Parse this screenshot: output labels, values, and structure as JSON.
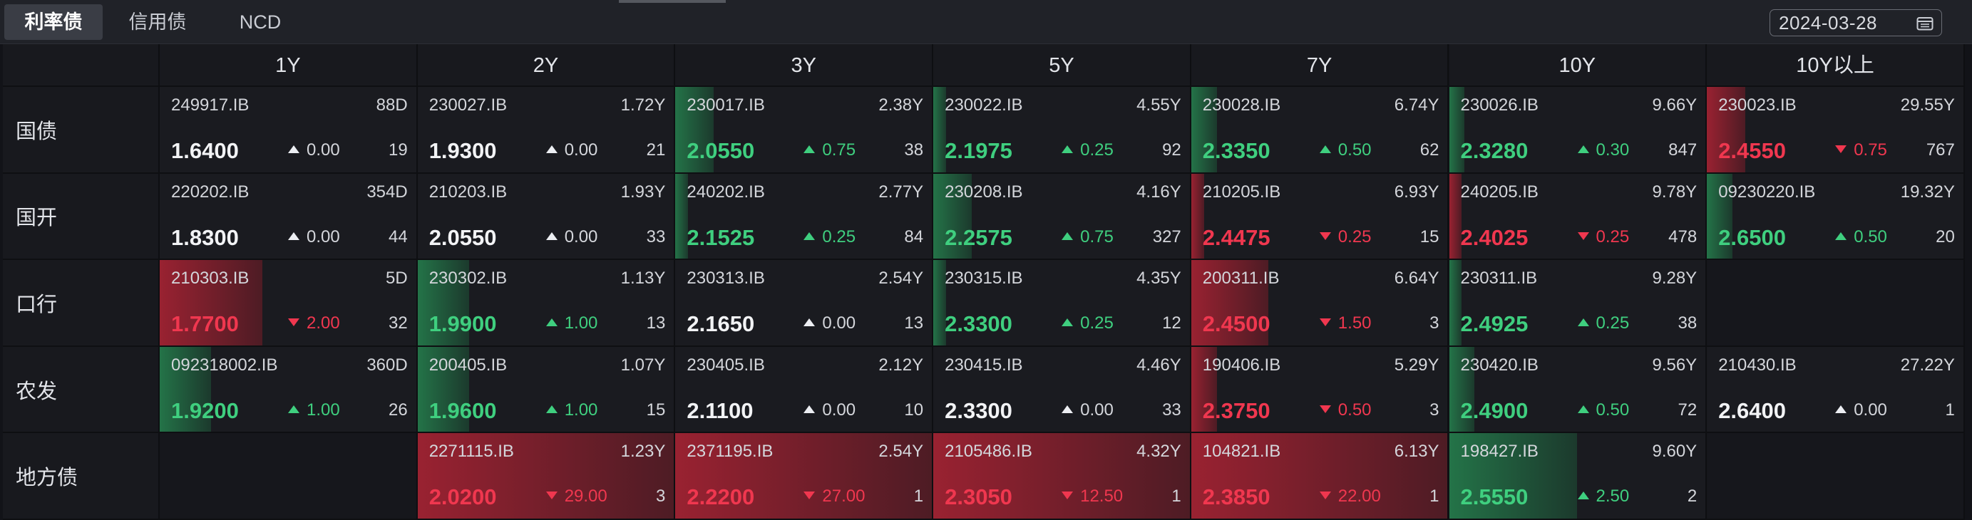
{
  "tabs": [
    {
      "label": "利率债",
      "active": true
    },
    {
      "label": "信用债",
      "active": false
    },
    {
      "label": "NCD",
      "active": false
    }
  ],
  "date": "2024-03-28",
  "columns": [
    "1Y",
    "2Y",
    "3Y",
    "5Y",
    "7Y",
    "10Y",
    "10Y以上"
  ],
  "rows": [
    {
      "label": "国债",
      "cells": [
        {
          "code": "249917.IB",
          "maturity": "88D",
          "yield": "1.6400",
          "change": "0.00",
          "dir": "flat",
          "volume": "19",
          "bar": "",
          "bar_pct": 0
        },
        {
          "code": "230027.IB",
          "maturity": "1.72Y",
          "yield": "1.9300",
          "change": "0.00",
          "dir": "flat",
          "volume": "21",
          "bar": "",
          "bar_pct": 0
        },
        {
          "code": "230017.IB",
          "maturity": "2.38Y",
          "yield": "2.0550",
          "change": "0.75",
          "dir": "up",
          "volume": "38",
          "bar": "green",
          "bar_pct": 0.15
        },
        {
          "code": "230022.IB",
          "maturity": "4.55Y",
          "yield": "2.1975",
          "change": "0.25",
          "dir": "up",
          "volume": "92",
          "bar": "green",
          "bar_pct": 0.05
        },
        {
          "code": "230028.IB",
          "maturity": "6.74Y",
          "yield": "2.3350",
          "change": "0.50",
          "dir": "up",
          "volume": "62",
          "bar": "green",
          "bar_pct": 0.1
        },
        {
          "code": "230026.IB",
          "maturity": "9.66Y",
          "yield": "2.3280",
          "change": "0.30",
          "dir": "up",
          "volume": "847",
          "bar": "green",
          "bar_pct": 0.06
        },
        {
          "code": "230023.IB",
          "maturity": "29.55Y",
          "yield": "2.4550",
          "change": "0.75",
          "dir": "down",
          "volume": "767",
          "bar": "red",
          "bar_pct": 0.15
        }
      ]
    },
    {
      "label": "国开",
      "cells": [
        {
          "code": "220202.IB",
          "maturity": "354D",
          "yield": "1.8300",
          "change": "0.00",
          "dir": "flat",
          "volume": "44",
          "bar": "",
          "bar_pct": 0
        },
        {
          "code": "210203.IB",
          "maturity": "1.93Y",
          "yield": "2.0550",
          "change": "0.00",
          "dir": "flat",
          "volume": "33",
          "bar": "",
          "bar_pct": 0
        },
        {
          "code": "240202.IB",
          "maturity": "2.77Y",
          "yield": "2.1525",
          "change": "0.25",
          "dir": "up",
          "volume": "84",
          "bar": "green",
          "bar_pct": 0.05
        },
        {
          "code": "230208.IB",
          "maturity": "4.16Y",
          "yield": "2.2575",
          "change": "0.75",
          "dir": "up",
          "volume": "327",
          "bar": "green",
          "bar_pct": 0.15
        },
        {
          "code": "210205.IB",
          "maturity": "6.93Y",
          "yield": "2.4475",
          "change": "0.25",
          "dir": "down",
          "volume": "15",
          "bar": "red",
          "bar_pct": 0.05
        },
        {
          "code": "240205.IB",
          "maturity": "9.78Y",
          "yield": "2.4025",
          "change": "0.25",
          "dir": "down",
          "volume": "478",
          "bar": "red",
          "bar_pct": 0.05
        },
        {
          "code": "09230220.IB",
          "maturity": "19.32Y",
          "yield": "2.6500",
          "change": "0.50",
          "dir": "up",
          "volume": "20",
          "bar": "green",
          "bar_pct": 0.1
        }
      ]
    },
    {
      "label": "口行",
      "cells": [
        {
          "code": "210303.IB",
          "maturity": "5D",
          "yield": "1.7700",
          "change": "2.00",
          "dir": "down",
          "volume": "32",
          "bar": "red",
          "bar_pct": 0.4
        },
        {
          "code": "230302.IB",
          "maturity": "1.13Y",
          "yield": "1.9900",
          "change": "1.00",
          "dir": "up",
          "volume": "13",
          "bar": "green",
          "bar_pct": 0.2
        },
        {
          "code": "230313.IB",
          "maturity": "2.54Y",
          "yield": "2.1650",
          "change": "0.00",
          "dir": "flat",
          "volume": "13",
          "bar": "",
          "bar_pct": 0
        },
        {
          "code": "230315.IB",
          "maturity": "4.35Y",
          "yield": "2.3300",
          "change": "0.25",
          "dir": "up",
          "volume": "12",
          "bar": "green",
          "bar_pct": 0.05
        },
        {
          "code": "200311.IB",
          "maturity": "6.64Y",
          "yield": "2.4500",
          "change": "1.50",
          "dir": "down",
          "volume": "3",
          "bar": "red",
          "bar_pct": 0.3
        },
        {
          "code": "230311.IB",
          "maturity": "9.28Y",
          "yield": "2.4925",
          "change": "0.25",
          "dir": "up",
          "volume": "38",
          "bar": "green",
          "bar_pct": 0.05
        },
        null
      ]
    },
    {
      "label": "农发",
      "cells": [
        {
          "code": "092318002.IB",
          "maturity": "360D",
          "yield": "1.9200",
          "change": "1.00",
          "dir": "up",
          "volume": "26",
          "bar": "green",
          "bar_pct": 0.2
        },
        {
          "code": "200405.IB",
          "maturity": "1.07Y",
          "yield": "1.9600",
          "change": "1.00",
          "dir": "up",
          "volume": "15",
          "bar": "green",
          "bar_pct": 0.2
        },
        {
          "code": "230405.IB",
          "maturity": "2.12Y",
          "yield": "2.1100",
          "change": "0.00",
          "dir": "flat",
          "volume": "10",
          "bar": "",
          "bar_pct": 0
        },
        {
          "code": "230415.IB",
          "maturity": "4.46Y",
          "yield": "2.3300",
          "change": "0.00",
          "dir": "flat",
          "volume": "33",
          "bar": "",
          "bar_pct": 0
        },
        {
          "code": "190406.IB",
          "maturity": "5.29Y",
          "yield": "2.3750",
          "change": "0.50",
          "dir": "down",
          "volume": "3",
          "bar": "red",
          "bar_pct": 0.1
        },
        {
          "code": "230420.IB",
          "maturity": "9.56Y",
          "yield": "2.4900",
          "change": "0.50",
          "dir": "up",
          "volume": "72",
          "bar": "green",
          "bar_pct": 0.1
        },
        {
          "code": "210430.IB",
          "maturity": "27.22Y",
          "yield": "2.6400",
          "change": "0.00",
          "dir": "flat",
          "volume": "1",
          "bar": "",
          "bar_pct": 0
        }
      ]
    },
    {
      "label": "地方债",
      "cells": [
        null,
        {
          "code": "2271115.IB",
          "maturity": "1.23Y",
          "yield": "2.0200",
          "change": "29.00",
          "dir": "down",
          "volume": "3",
          "bar": "red",
          "bar_pct": 1.0
        },
        {
          "code": "2371195.IB",
          "maturity": "2.54Y",
          "yield": "2.2200",
          "change": "27.00",
          "dir": "down",
          "volume": "1",
          "bar": "red",
          "bar_pct": 1.0
        },
        {
          "code": "2105486.IB",
          "maturity": "4.32Y",
          "yield": "2.3050",
          "change": "12.50",
          "dir": "down",
          "volume": "1",
          "bar": "red",
          "bar_pct": 1.0
        },
        {
          "code": "104821.IB",
          "maturity": "6.13Y",
          "yield": "2.3850",
          "change": "22.00",
          "dir": "down",
          "volume": "1",
          "bar": "red",
          "bar_pct": 1.0
        },
        {
          "code": "198427.IB",
          "maturity": "9.60Y",
          "yield": "2.5550",
          "change": "2.50",
          "dir": "up",
          "volume": "2",
          "bar": "green",
          "bar_pct": 0.5
        },
        null
      ]
    }
  ],
  "colors": {
    "up": "#3fcf7f",
    "down": "#f0374f",
    "flat": "#f2f3f5",
    "background": "#121318"
  }
}
